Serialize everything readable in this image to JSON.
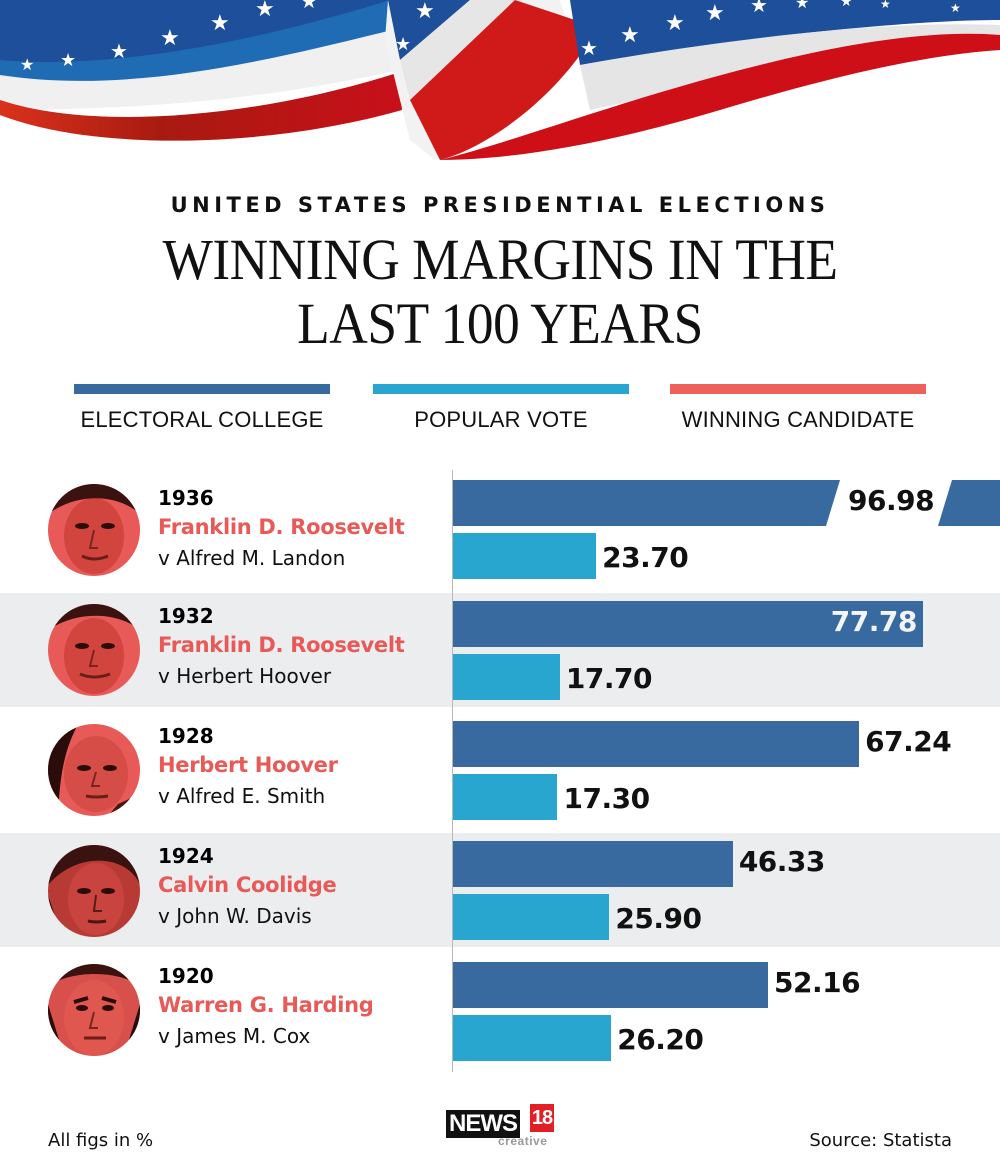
{
  "header": {
    "subtitle": "UNITED STATES PRESIDENTIAL ELECTIONS",
    "title_line1": "WINNING MARGINS IN THE",
    "title_line2": "LAST 100 YEARS"
  },
  "legend": [
    {
      "label": "ELECTORAL COLLEGE",
      "color": "#386a9f"
    },
    {
      "label": "POPULAR VOTE",
      "color": "#28a6d0"
    },
    {
      "label": "WINNING CANDIDATE",
      "color": "#f0605a"
    }
  ],
  "elections": [
    {
      "year": "1936",
      "winner": "Franklin D. Roosevelt",
      "opponent": "v Alfred M. Landon",
      "electoral_college": "96.98",
      "popular_vote": "23.70"
    },
    {
      "year": "1932",
      "winner": "Franklin D. Roosevelt",
      "opponent": "v Herbert Hoover",
      "electoral_college": "77.78",
      "popular_vote": "17.70"
    },
    {
      "year": "1928",
      "winner": "Herbert Hoover",
      "opponent": "v Alfred E. Smith",
      "electoral_college": "67.24",
      "popular_vote": "17.30"
    },
    {
      "year": "1924",
      "winner": "Calvin Coolidge",
      "opponent": "v John W. Davis",
      "electoral_college": "46.33",
      "popular_vote": "25.90"
    },
    {
      "year": "1920",
      "winner": "Warren G. Harding",
      "opponent": "v James M. Cox",
      "electoral_college": "52.16",
      "popular_vote": "26.20"
    }
  ],
  "chart_data": {
    "type": "bar",
    "orientation": "horizontal",
    "title": "WINNING MARGINS IN THE LAST 100 YEARS",
    "subtitle": "UNITED STATES PRESIDENTIAL ELECTIONS",
    "categories": [
      "1936",
      "1932",
      "1928",
      "1924",
      "1920"
    ],
    "series": [
      {
        "name": "ELECTORAL COLLEGE",
        "color": "#386a9f",
        "values": [
          96.98,
          77.78,
          67.24,
          46.33,
          52.16
        ]
      },
      {
        "name": "POPULAR VOTE",
        "color": "#28a6d0",
        "values": [
          23.7,
          17.7,
          17.3,
          25.9,
          26.2
        ]
      }
    ],
    "unit": "%",
    "xlim": [
      0,
      90
    ],
    "axis_break": {
      "series": "ELECTORAL COLLEGE",
      "category": "1936"
    },
    "grid": false,
    "legend_position": "top",
    "notes": {
      "left": "All figs in %",
      "right": "Source: Statista"
    }
  },
  "footer": {
    "note": "All figs in %",
    "source": "Source: Statista",
    "logo_main": "NEWS",
    "logo_num": "18",
    "logo_sub": "creative"
  }
}
